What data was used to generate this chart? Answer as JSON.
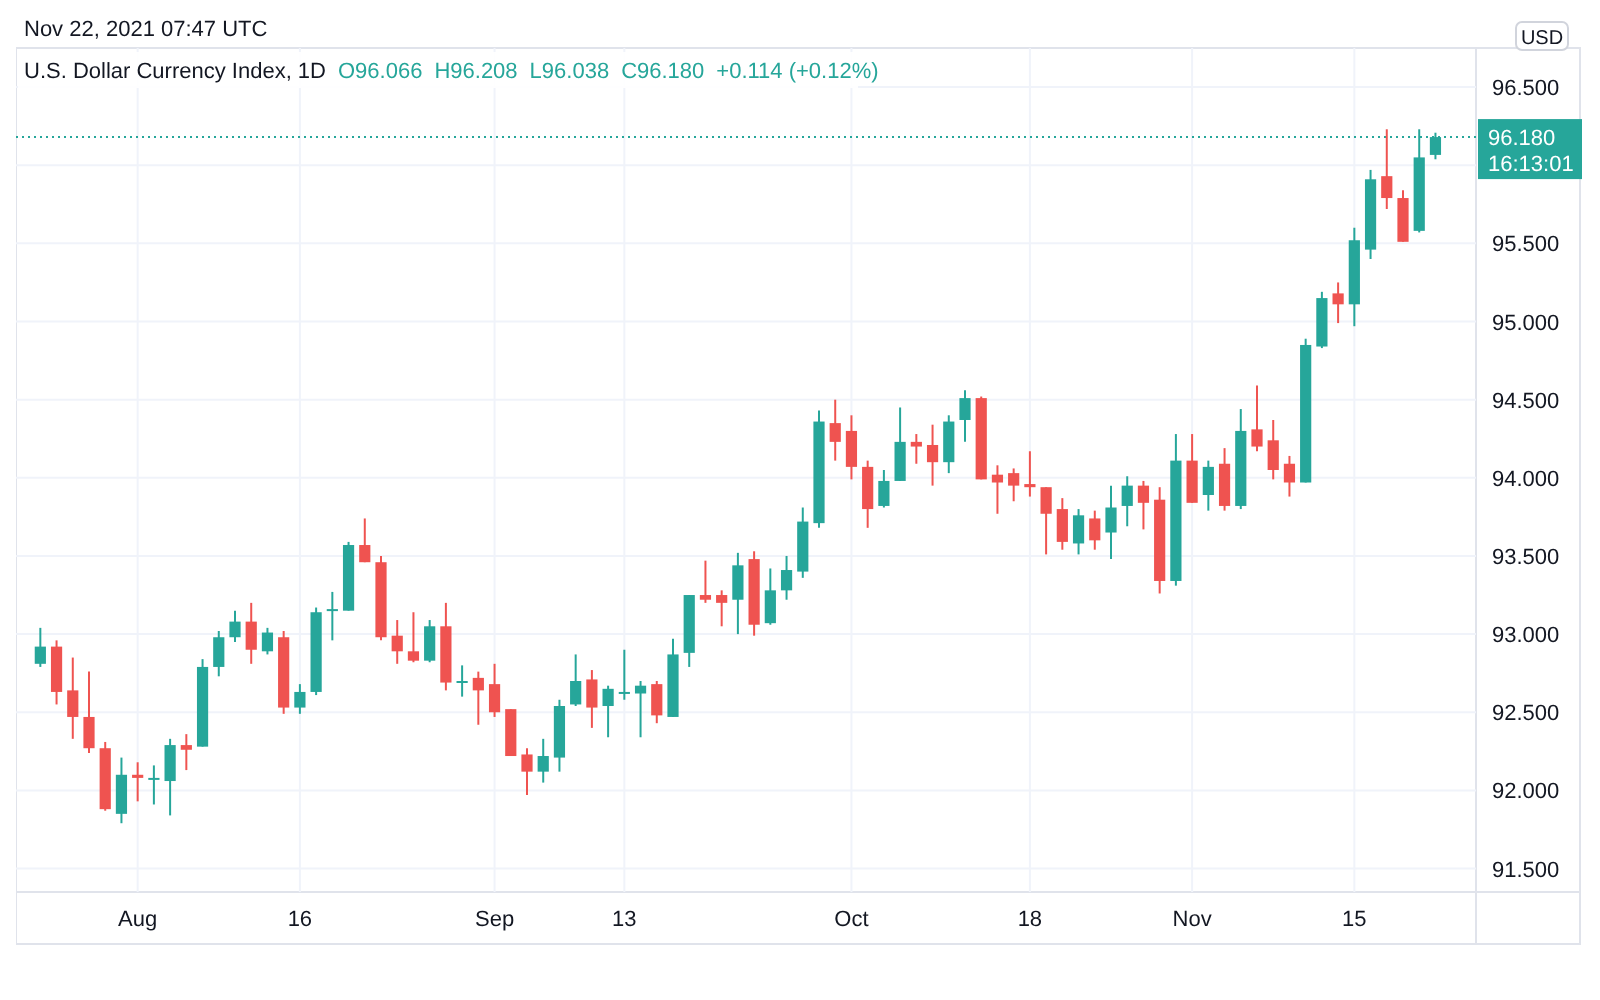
{
  "chart_data": {
    "type": "candlestick",
    "title": "U.S. Dollar Currency Index, 1D",
    "annotations": [
      "Nov 22, 2021 07:47 UTC",
      "O96.066",
      "H96.208",
      "L96.038",
      "C96.180",
      "+0.114 (+0.12%)",
      "USD",
      "16:13:01"
    ],
    "categories": [
      null,
      null,
      null,
      null,
      null,
      null,
      "Aug",
      null,
      null,
      null,
      null,
      null,
      null,
      null,
      null,
      null,
      "16",
      null,
      null,
      null,
      null,
      null,
      null,
      null,
      null,
      null,
      null,
      null,
      "Sep",
      null,
      null,
      null,
      null,
      null,
      null,
      null,
      "13",
      null,
      null,
      null,
      null,
      null,
      null,
      null,
      null,
      null,
      null,
      null,
      null,
      null,
      "Oct",
      null,
      null,
      null,
      null,
      null,
      null,
      null,
      null,
      null,
      null,
      "18",
      null,
      null,
      null,
      null,
      null,
      null,
      null,
      null,
      null,
      "Nov",
      null,
      null,
      null,
      null,
      null,
      null,
      null,
      null,
      null,
      "15",
      null,
      null,
      null,
      null,
      null
    ],
    "ohlc": [
      [
        92.81,
        93.04,
        92.79,
        92.92
      ],
      [
        92.92,
        92.96,
        92.55,
        92.63
      ],
      [
        92.64,
        92.85,
        92.33,
        92.47
      ],
      [
        92.47,
        92.76,
        92.24,
        92.27
      ],
      [
        92.27,
        92.31,
        91.87,
        91.88
      ],
      [
        91.85,
        92.21,
        91.79,
        92.1
      ],
      [
        92.1,
        92.18,
        91.93,
        92.08
      ],
      [
        92.07,
        92.16,
        91.91,
        92.08
      ],
      [
        92.06,
        92.33,
        91.84,
        92.29
      ],
      [
        92.29,
        92.36,
        92.13,
        92.26
      ],
      [
        92.28,
        92.84,
        92.28,
        92.79
      ],
      [
        92.79,
        93.02,
        92.73,
        92.98
      ],
      [
        92.98,
        93.15,
        92.95,
        93.08
      ],
      [
        93.08,
        93.2,
        92.81,
        92.9
      ],
      [
        92.89,
        93.04,
        92.87,
        93.01
      ],
      [
        92.98,
        93.02,
        92.49,
        92.53
      ],
      [
        92.53,
        92.68,
        92.49,
        92.63
      ],
      [
        92.63,
        93.17,
        92.61,
        93.14
      ],
      [
        93.15,
        93.27,
        92.96,
        93.16
      ],
      [
        93.15,
        93.59,
        93.15,
        93.57
      ],
      [
        93.57,
        93.74,
        93.46,
        93.46
      ],
      [
        93.46,
        93.5,
        92.96,
        92.98
      ],
      [
        92.99,
        93.09,
        92.81,
        92.89
      ],
      [
        92.89,
        93.14,
        92.82,
        92.83
      ],
      [
        92.83,
        93.09,
        92.82,
        93.05
      ],
      [
        93.05,
        93.2,
        92.64,
        92.69
      ],
      [
        92.69,
        92.8,
        92.6,
        92.7
      ],
      [
        92.72,
        92.76,
        92.42,
        92.64
      ],
      [
        92.68,
        92.81,
        92.47,
        92.5
      ],
      [
        92.52,
        92.52,
        92.22,
        92.22
      ],
      [
        92.23,
        92.27,
        91.97,
        92.12
      ],
      [
        92.12,
        92.33,
        92.05,
        92.22
      ],
      [
        92.21,
        92.58,
        92.12,
        92.54
      ],
      [
        92.55,
        92.87,
        92.54,
        92.7
      ],
      [
        92.71,
        92.77,
        92.4,
        92.53
      ],
      [
        92.54,
        92.67,
        92.34,
        92.65
      ],
      [
        92.62,
        92.9,
        92.58,
        92.63
      ],
      [
        92.62,
        92.7,
        92.34,
        92.67
      ],
      [
        92.68,
        92.7,
        92.43,
        92.48
      ],
      [
        92.47,
        92.97,
        92.47,
        92.87
      ],
      [
        92.88,
        93.25,
        92.79,
        93.25
      ],
      [
        93.25,
        93.47,
        93.2,
        93.22
      ],
      [
        93.25,
        93.28,
        93.05,
        93.2
      ],
      [
        93.22,
        93.52,
        93.0,
        93.44
      ],
      [
        93.48,
        93.53,
        92.99,
        93.06
      ],
      [
        93.07,
        93.42,
        93.06,
        93.28
      ],
      [
        93.28,
        93.5,
        93.22,
        93.41
      ],
      [
        93.4,
        93.81,
        93.36,
        93.72
      ],
      [
        93.71,
        94.43,
        93.68,
        94.36
      ],
      [
        94.35,
        94.5,
        94.11,
        94.23
      ],
      [
        94.3,
        94.4,
        93.99,
        94.07
      ],
      [
        94.07,
        94.11,
        93.68,
        93.8
      ],
      [
        93.82,
        94.05,
        93.81,
        93.98
      ],
      [
        93.98,
        94.45,
        93.98,
        94.23
      ],
      [
        94.23,
        94.28,
        94.09,
        94.2
      ],
      [
        94.21,
        94.34,
        93.95,
        94.1
      ],
      [
        94.1,
        94.4,
        94.03,
        94.36
      ],
      [
        94.37,
        94.56,
        94.23,
        94.51
      ],
      [
        94.51,
        94.52,
        93.99,
        93.99
      ],
      [
        94.02,
        94.08,
        93.77,
        93.97
      ],
      [
        94.03,
        94.06,
        93.85,
        93.95
      ],
      [
        93.96,
        94.17,
        93.88,
        93.94
      ],
      [
        93.94,
        93.94,
        93.51,
        93.77
      ],
      [
        93.8,
        93.87,
        93.54,
        93.59
      ],
      [
        93.58,
        93.8,
        93.51,
        93.76
      ],
      [
        93.74,
        93.79,
        93.54,
        93.6
      ],
      [
        93.65,
        93.95,
        93.48,
        93.81
      ],
      [
        93.82,
        94.01,
        93.69,
        93.95
      ],
      [
        93.95,
        93.98,
        93.67,
        93.84
      ],
      [
        93.86,
        93.94,
        93.26,
        93.34
      ],
      [
        93.34,
        94.28,
        93.31,
        94.11
      ],
      [
        94.11,
        94.28,
        93.84,
        93.84
      ],
      [
        93.89,
        94.11,
        93.79,
        94.07
      ],
      [
        94.09,
        94.19,
        93.79,
        93.82
      ],
      [
        93.82,
        94.44,
        93.8,
        94.3
      ],
      [
        94.31,
        94.59,
        94.17,
        94.2
      ],
      [
        94.24,
        94.37,
        93.99,
        94.05
      ],
      [
        94.09,
        94.14,
        93.88,
        93.97
      ],
      [
        93.97,
        94.89,
        93.97,
        94.85
      ],
      [
        94.84,
        95.19,
        94.83,
        95.15
      ],
      [
        95.18,
        95.25,
        94.99,
        95.11
      ],
      [
        95.11,
        95.6,
        94.97,
        95.52
      ],
      [
        95.46,
        95.97,
        95.4,
        95.91
      ],
      [
        95.93,
        96.23,
        95.72,
        95.79
      ],
      [
        95.79,
        95.84,
        95.51,
        95.51
      ],
      [
        95.58,
        96.23,
        95.57,
        96.05
      ],
      [
        96.066,
        96.208,
        96.038,
        96.18
      ]
    ],
    "colors": [
      "#26a69a",
      "#ef5350",
      "#ef5350",
      "#ef5350",
      "#ef5350",
      "#26a69a",
      "#ef5350",
      "#26a69a",
      "#26a69a",
      "#ef5350",
      "#26a69a",
      "#26a69a",
      "#26a69a",
      "#ef5350",
      "#26a69a",
      "#ef5350",
      "#26a69a",
      "#26a69a",
      "#26a69a",
      "#26a69a",
      "#ef5350",
      "#ef5350",
      "#ef5350",
      "#ef5350",
      "#26a69a",
      "#ef5350",
      "#26a69a",
      "#ef5350",
      "#ef5350",
      "#ef5350",
      "#ef5350",
      "#26a69a",
      "#26a69a",
      "#26a69a",
      "#ef5350",
      "#26a69a",
      "#26a69a",
      "#26a69a",
      "#ef5350",
      "#26a69a",
      "#26a69a",
      "#ef5350",
      "#ef5350",
      "#26a69a",
      "#ef5350",
      "#26a69a",
      "#26a69a",
      "#26a69a",
      "#26a69a",
      "#ef5350",
      "#ef5350",
      "#ef5350",
      "#26a69a",
      "#26a69a",
      "#ef5350",
      "#ef5350",
      "#26a69a",
      "#26a69a",
      "#ef5350",
      "#ef5350",
      "#ef5350",
      "#ef5350",
      "#ef5350",
      "#ef5350",
      "#26a69a",
      "#ef5350",
      "#26a69a",
      "#26a69a",
      "#ef5350",
      "#ef5350",
      "#26a69a",
      "#ef5350",
      "#26a69a",
      "#ef5350",
      "#26a69a",
      "#ef5350",
      "#ef5350",
      "#ef5350",
      "#26a69a",
      "#26a69a",
      "#ef5350",
      "#26a69a",
      "#26a69a",
      "#ef5350",
      "#ef5350",
      "#26a69a",
      "#26a69a"
    ],
    "ylim": [
      91.35,
      96.75
    ],
    "yticks": [
      {
        "value": 91.5,
        "label": "91.500"
      },
      {
        "value": 92,
        "label": "92.000"
      },
      {
        "value": 92.5,
        "label": "92.500"
      },
      {
        "value": 93,
        "label": "93.000"
      },
      {
        "value": 93.5,
        "label": "93.500"
      },
      {
        "value": 94,
        "label": "94.000"
      },
      {
        "value": 94.5,
        "label": "94.500"
      },
      {
        "value": 95,
        "label": "95.000"
      },
      {
        "value": 95.5,
        "label": "95.500"
      },
      {
        "value": 96,
        "label": null
      },
      {
        "value": 96.5,
        "label": "96.500"
      }
    ],
    "ref_lines": [
      {
        "axis": "y",
        "value": 96.18,
        "label": "96.180",
        "color": "#26a69a",
        "line_style": "dotted"
      }
    ],
    "grid": true
  }
}
